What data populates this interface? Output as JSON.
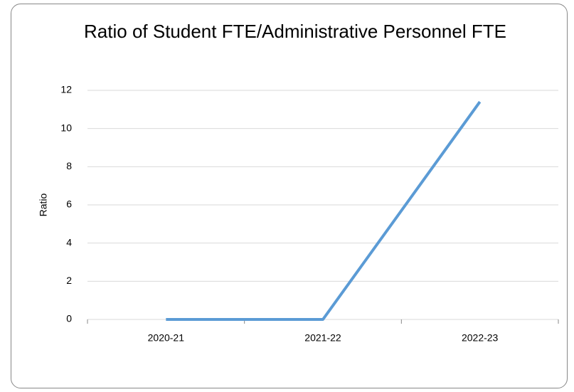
{
  "chart_data": {
    "type": "line",
    "title": "Ratio of Student FTE/Administrative Personnel FTE",
    "y_label": "Ratio",
    "categories": [
      "2020-21",
      "2021-22",
      "2022-23"
    ],
    "series": [
      {
        "name": "Ratio",
        "color": "#5b9bd5",
        "values": [
          0,
          0,
          11.4
        ]
      }
    ],
    "ylim": [
      0,
      12
    ],
    "yticks": [
      0,
      2,
      4,
      6,
      8,
      10,
      12
    ],
    "grid": true
  }
}
